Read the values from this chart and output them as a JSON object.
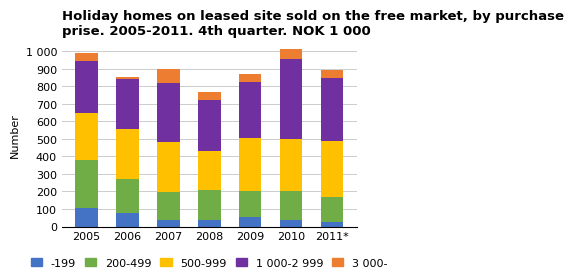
{
  "years": [
    "2005",
    "2006",
    "2007",
    "2008",
    "2009",
    "2010",
    "2011*"
  ],
  "series": {
    "-199": [
      105,
      75,
      35,
      35,
      55,
      40,
      25
    ],
    "200-499": [
      275,
      195,
      160,
      175,
      145,
      165,
      145
    ],
    "500-999": [
      265,
      285,
      290,
      220,
      305,
      295,
      320
    ],
    "1 000-2 999": [
      300,
      285,
      335,
      290,
      320,
      455,
      360
    ],
    "3 000-": [
      45,
      15,
      80,
      50,
      45,
      60,
      45
    ]
  },
  "colors": {
    "-199": "#4472c4",
    "200-499": "#70ad47",
    "500-999": "#ffc000",
    "1 000-2 999": "#7030a0",
    "3 000-": "#ed7d31"
  },
  "title": "Holiday homes on leased site sold on the free market, by purchase\nprise. 2005-2011. 4th quarter. NOK 1 000",
  "ylabel": "Number",
  "ylim": [
    0,
    1050
  ],
  "yticks": [
    0,
    100,
    200,
    300,
    400,
    500,
    600,
    700,
    800,
    900,
    1000
  ],
  "ytick_labels": [
    "0",
    "100",
    "200",
    "300",
    "400",
    "500",
    "600",
    "700",
    "800",
    "900",
    "1 000"
  ],
  "background_color": "#ffffff",
  "title_fontsize": 9.5,
  "legend_fontsize": 8,
  "axis_fontsize": 8
}
